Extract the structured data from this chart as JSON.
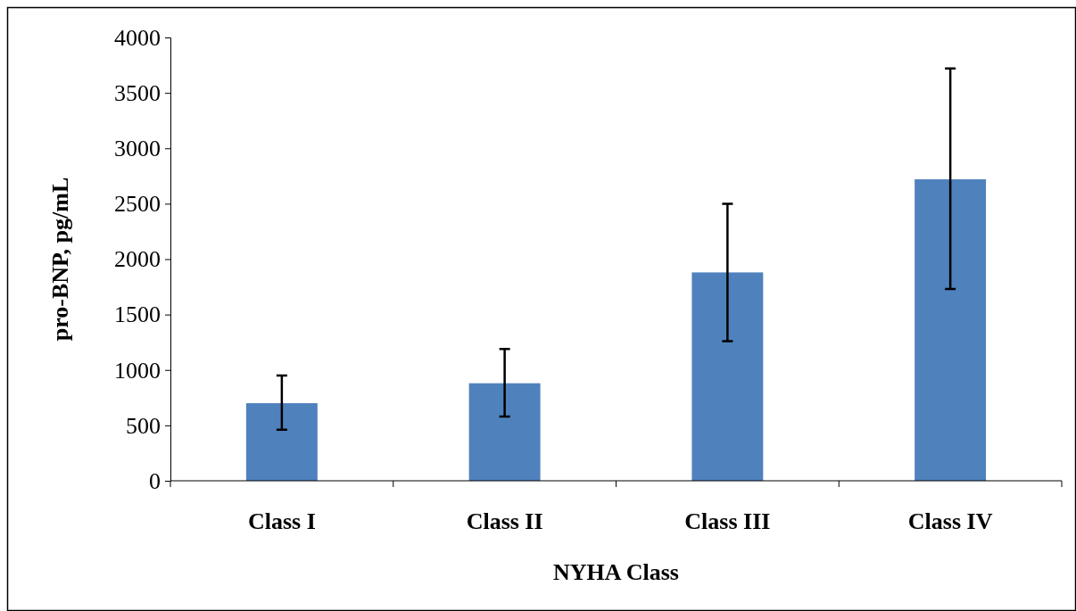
{
  "chart_data": {
    "type": "bar",
    "xlabel": "NYHA Class",
    "ylabel": "pro-BNP, pg/mL",
    "categories": [
      "Class I",
      "Class II",
      "Class III",
      "Class IV"
    ],
    "values": [
      700,
      880,
      1880,
      2720
    ],
    "errors": [
      [
        460,
        950
      ],
      [
        580,
        1190
      ],
      [
        1260,
        2500
      ],
      [
        1730,
        3720
      ]
    ],
    "color": "#4f81bd",
    "ylim": [
      0,
      4000
    ],
    "yticks": [
      0,
      500,
      1000,
      1500,
      2000,
      2500,
      3000,
      3500,
      4000
    ],
    "grid": false
  }
}
